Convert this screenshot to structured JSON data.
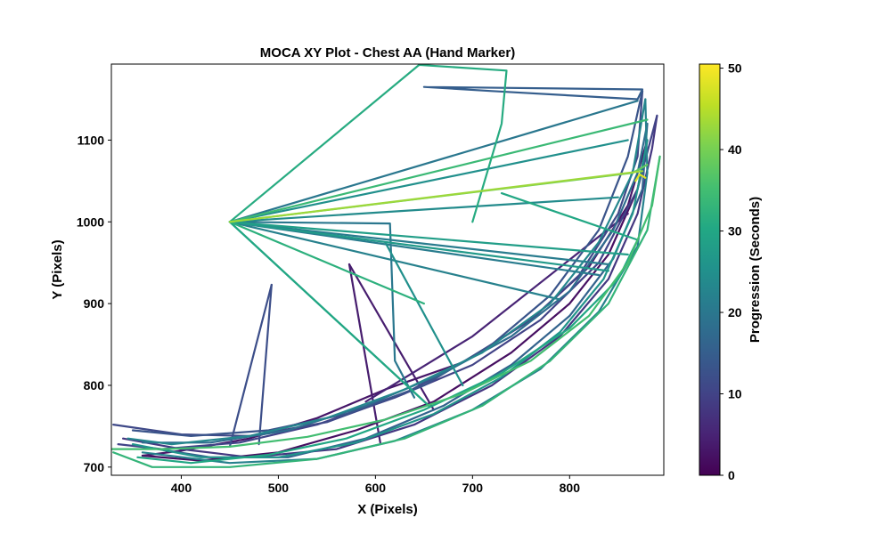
{
  "chart_data": {
    "type": "line",
    "title": "MOCA XY Plot - Chest AA (Hand Marker)",
    "xlabel": "X (Pixels)",
    "ylabel": "Y (Pixels)",
    "xlim": [
      328,
      897
    ],
    "ylim": [
      690,
      1193
    ],
    "x_ticks": [
      "400",
      "500",
      "600",
      "700",
      "800"
    ],
    "y_ticks": [
      "700",
      "800",
      "900",
      "1000",
      "1100"
    ],
    "grid": false,
    "colorbar": {
      "label": "Progression (Seconds)",
      "colormap": "viridis",
      "range": [
        0,
        50.5
      ],
      "ticks": [
        "0",
        "10",
        "20",
        "30",
        "40",
        "50"
      ]
    },
    "series": [
      {
        "t": 2,
        "points": [
          [
            360,
            714
          ],
          [
            420,
            708
          ],
          [
            500,
            718
          ],
          [
            580,
            745
          ],
          [
            660,
            780
          ],
          [
            740,
            840
          ],
          [
            800,
            900
          ],
          [
            840,
            960
          ],
          [
            870,
            1040
          ],
          [
            880,
            1100
          ]
        ]
      },
      {
        "t": 3,
        "points": [
          [
            880,
            1100
          ],
          [
            860,
            1020
          ],
          [
            820,
            945
          ],
          [
            760,
            880
          ],
          [
            690,
            828
          ],
          [
            610,
            795
          ],
          [
            540,
            760
          ],
          [
            470,
            735
          ],
          [
            400,
            720
          ],
          [
            360,
            714
          ]
        ]
      },
      {
        "t": 4,
        "points": [
          [
            573,
            948
          ],
          [
            605,
            730
          ]
        ]
      },
      {
        "t": 4,
        "points": [
          [
            573,
            948
          ],
          [
            660,
            770
          ]
        ]
      },
      {
        "t": 5,
        "points": [
          [
            590,
            780
          ],
          [
            700,
            860
          ],
          [
            860,
            1010
          ]
        ]
      },
      {
        "t": 8,
        "points": [
          [
            340,
            735
          ],
          [
            400,
            722
          ],
          [
            470,
            712
          ],
          [
            560,
            722
          ],
          [
            640,
            752
          ],
          [
            720,
            800
          ],
          [
            790,
            860
          ],
          [
            840,
            930
          ],
          [
            870,
            1010
          ],
          [
            885,
            1090
          ],
          [
            890,
            1130
          ]
        ]
      },
      {
        "t": 10,
        "points": [
          [
            890,
            1130
          ],
          [
            870,
            1040
          ],
          [
            830,
            950
          ],
          [
            770,
            880
          ],
          [
            700,
            825
          ],
          [
            620,
            785
          ],
          [
            540,
            752
          ],
          [
            460,
            730
          ],
          [
            380,
            722
          ],
          [
            335,
            728
          ]
        ]
      },
      {
        "t": 11,
        "points": [
          [
            330,
            752
          ],
          [
            400,
            740
          ],
          [
            470,
            738
          ],
          [
            550,
            755
          ],
          [
            630,
            790
          ],
          [
            700,
            835
          ],
          [
            760,
            880
          ],
          [
            810,
            935
          ],
          [
            850,
            1010
          ],
          [
            870,
            1080
          ],
          [
            875,
            1160
          ]
        ]
      },
      {
        "t": 12,
        "points": [
          [
            493,
            923
          ],
          [
            450,
            725
          ]
        ]
      },
      {
        "t": 12,
        "points": [
          [
            493,
            923
          ],
          [
            480,
            728
          ]
        ]
      },
      {
        "t": 13,
        "points": [
          [
            875,
            1160
          ],
          [
            860,
            1080
          ],
          [
            830,
            990
          ],
          [
            780,
            910
          ],
          [
            720,
            850
          ],
          [
            650,
            800
          ],
          [
            570,
            765
          ],
          [
            490,
            745
          ],
          [
            410,
            738
          ],
          [
            350,
            745
          ]
        ]
      },
      {
        "t": 15,
        "points": [
          [
            650,
            1165
          ],
          [
            875,
            1162
          ],
          [
            870,
            1150
          ],
          [
            720,
            1160
          ],
          [
            650,
            1165
          ]
        ]
      },
      {
        "t": 16,
        "points": [
          [
            360,
            725
          ],
          [
            430,
            712
          ],
          [
            510,
            712
          ],
          [
            590,
            735
          ],
          [
            670,
            775
          ],
          [
            740,
            825
          ],
          [
            800,
            885
          ],
          [
            845,
            955
          ],
          [
            875,
            1040
          ],
          [
            880,
            1120
          ]
        ]
      },
      {
        "t": 18,
        "points": [
          [
            880,
            1120
          ],
          [
            870,
            1060
          ],
          [
            845,
            990
          ],
          [
            800,
            915
          ],
          [
            740,
            860
          ],
          [
            670,
            815
          ],
          [
            590,
            775
          ],
          [
            510,
            745
          ],
          [
            430,
            730
          ],
          [
            360,
            730
          ]
        ]
      },
      {
        "t": 20,
        "points": [
          [
            450,
            1000
          ],
          [
            615,
            998
          ],
          [
            620,
            830
          ],
          [
            640,
            785
          ]
        ]
      },
      {
        "t": 20,
        "points": [
          [
            450,
            1000
          ],
          [
            870,
            1148
          ]
        ]
      },
      {
        "t": 21,
        "points": [
          [
            450,
            1000
          ],
          [
            840,
            948
          ]
        ]
      },
      {
        "t": 21,
        "points": [
          [
            450,
            1000
          ],
          [
            830,
            935
          ]
        ]
      },
      {
        "t": 22,
        "points": [
          [
            450,
            1000
          ],
          [
            790,
            905
          ]
        ]
      },
      {
        "t": 22,
        "points": [
          [
            360,
            718
          ],
          [
            450,
            705
          ],
          [
            540,
            710
          ],
          [
            620,
            732
          ],
          [
            700,
            770
          ],
          [
            770,
            820
          ],
          [
            830,
            890
          ],
          [
            870,
            970
          ],
          [
            880,
            1060
          ],
          [
            878,
            1150
          ]
        ]
      },
      {
        "t": 23,
        "points": [
          [
            878,
            1150
          ],
          [
            865,
            1060
          ],
          [
            830,
            975
          ],
          [
            780,
            900
          ],
          [
            710,
            840
          ],
          [
            630,
            795
          ],
          [
            550,
            760
          ],
          [
            470,
            738
          ],
          [
            390,
            728
          ],
          [
            345,
            735
          ]
        ]
      },
      {
        "t": 24,
        "points": [
          [
            450,
            1000
          ],
          [
            850,
            1030
          ]
        ]
      },
      {
        "t": 25,
        "points": [
          [
            450,
            1000
          ],
          [
            860,
            1100
          ]
        ]
      },
      {
        "t": 25,
        "points": [
          [
            610,
            975
          ],
          [
            690,
            800
          ]
        ]
      },
      {
        "t": 26,
        "points": [
          [
            350,
            728
          ],
          [
            420,
            712
          ],
          [
            500,
            712
          ],
          [
            580,
            730
          ],
          [
            660,
            765
          ],
          [
            730,
            810
          ],
          [
            790,
            865
          ],
          [
            835,
            930
          ],
          [
            865,
            1010
          ],
          [
            880,
            1100
          ]
        ]
      },
      {
        "t": 27,
        "points": [
          [
            450,
            1000
          ],
          [
            840,
            940
          ]
        ]
      },
      {
        "t": 28,
        "points": [
          [
            450,
            1000
          ],
          [
            860,
            960
          ]
        ]
      },
      {
        "t": 29,
        "points": [
          [
            450,
            1000
          ],
          [
            655,
            775
          ]
        ]
      },
      {
        "t": 30,
        "points": [
          [
            655,
            775
          ],
          [
            450,
            1000
          ]
        ]
      },
      {
        "t": 30,
        "points": [
          [
            730,
            1035
          ],
          [
            870,
            978
          ],
          [
            850,
            930
          ],
          [
            800,
            870
          ],
          [
            730,
            815
          ],
          [
            650,
            770
          ],
          [
            570,
            735
          ],
          [
            490,
            715
          ],
          [
            410,
            705
          ],
          [
            355,
            712
          ]
        ]
      },
      {
        "t": 31,
        "points": [
          [
            450,
            1000
          ],
          [
            645,
            1192
          ],
          [
            735,
            1185
          ],
          [
            730,
            1120
          ],
          [
            720,
            1080
          ],
          [
            700,
            1000
          ]
        ]
      },
      {
        "t": 32,
        "points": [
          [
            450,
            1000
          ],
          [
            650,
            900
          ]
        ]
      },
      {
        "t": 33,
        "points": [
          [
            330,
            718
          ],
          [
            370,
            700
          ],
          [
            450,
            700
          ],
          [
            540,
            710
          ],
          [
            630,
            735
          ],
          [
            710,
            775
          ],
          [
            780,
            830
          ],
          [
            840,
            900
          ],
          [
            880,
            990
          ],
          [
            893,
            1080
          ]
        ]
      },
      {
        "t": 34,
        "points": [
          [
            450,
            1000
          ],
          [
            880,
            1125
          ]
        ]
      },
      {
        "t": 35,
        "points": [
          [
            893,
            1080
          ],
          [
            885,
            1020
          ],
          [
            860,
            950
          ],
          [
            820,
            885
          ],
          [
            760,
            830
          ],
          [
            690,
            790
          ],
          [
            610,
            758
          ],
          [
            530,
            737
          ],
          [
            450,
            725
          ],
          [
            380,
            722
          ],
          [
            328,
            722
          ]
        ]
      },
      {
        "t": 38,
        "points": [
          [
            450,
            1000
          ],
          [
            865,
            1060
          ],
          [
            880,
            1070
          ]
        ]
      },
      {
        "t": 43,
        "points": [
          [
            450,
            1000
          ],
          [
            875,
            1062
          ]
        ]
      },
      {
        "t": 48,
        "points": [
          [
            868,
            1050
          ],
          [
            872,
            1058
          ],
          [
            878,
            1054
          ]
        ]
      }
    ]
  }
}
